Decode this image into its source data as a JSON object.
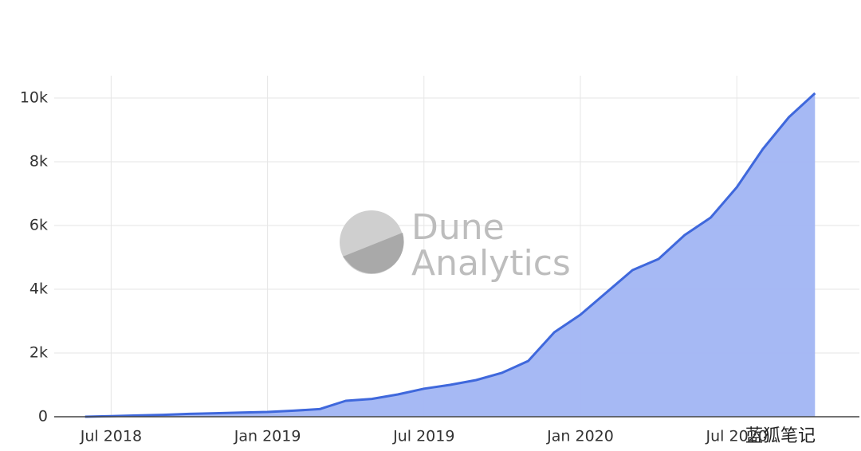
{
  "chart_data": {
    "type": "area",
    "x": [
      "2018-06",
      "2018-07",
      "2018-08",
      "2018-09",
      "2018-10",
      "2018-11",
      "2018-12",
      "2019-01",
      "2019-02",
      "2019-03",
      "2019-04",
      "2019-05",
      "2019-06",
      "2019-07",
      "2019-08",
      "2019-09",
      "2019-10",
      "2019-11",
      "2019-12",
      "2020-01",
      "2020-02",
      "2020-03",
      "2020-04",
      "2020-05",
      "2020-06",
      "2020-07",
      "2020-08",
      "2020-09",
      "2020-10"
    ],
    "series": [
      {
        "color": "#3f68dc",
        "fill": "#a1b5f3",
        "values": [
          0,
          20,
          40,
          60,
          90,
          110,
          130,
          150,
          190,
          240,
          500,
          560,
          700,
          880,
          1000,
          1150,
          1380,
          1750,
          2650,
          3200,
          3900,
          4600,
          4950,
          5700,
          6250,
          7200,
          8400,
          9400,
          10150
        ]
      }
    ],
    "xlim": [
      "2018-05",
      "2020-11"
    ],
    "xticks": [
      {
        "value": "2018-07",
        "label": "Jul 2018"
      },
      {
        "value": "2019-01",
        "label": "Jan 2019"
      },
      {
        "value": "2019-07",
        "label": "Jul 2019"
      },
      {
        "value": "2020-01",
        "label": "Jan 2020"
      },
      {
        "value": "2020-07",
        "label": "Jul 2020"
      }
    ],
    "ylim": [
      0,
      10700
    ],
    "yticks": [
      0,
      {
        "value": 2000,
        "label": "2k"
      },
      {
        "value": 4000,
        "label": "4k"
      },
      {
        "value": 6000,
        "label": "6k"
      },
      {
        "value": 8000,
        "label": "8k"
      },
      {
        "value": 10000,
        "label": "10k"
      }
    ],
    "grid": true,
    "watermark": [
      "Dune",
      "Analytics"
    ],
    "corner_mark": "蓝狐笔记"
  }
}
